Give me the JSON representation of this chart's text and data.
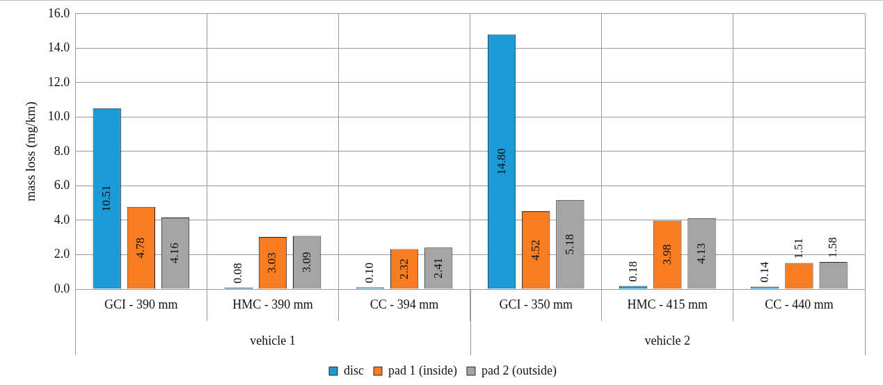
{
  "chart_data": {
    "type": "bar",
    "ylabel": "mass loss (mg/km)",
    "categories": [
      "GCI - 390 mm",
      "HMC - 390 mm",
      "CC - 394 mm",
      "GCI - 350 mm",
      "HMC - 415 mm",
      "CC - 440 mm"
    ],
    "series": [
      {
        "name": "disc",
        "color": "#1a9ad6",
        "values": [
          10.51,
          0.08,
          0.1,
          14.8,
          0.18,
          0.14
        ],
        "value_labels": [
          "10.51",
          "0.08",
          "0.10",
          "14.80",
          "0.18",
          "0.14"
        ]
      },
      {
        "name": "pad 1 (inside)",
        "color": "#fb7d21",
        "values": [
          4.78,
          3.03,
          2.32,
          4.52,
          3.98,
          1.51
        ],
        "value_labels": [
          "4.78",
          "3.03",
          "2.32",
          "4.52",
          "3.98",
          "1.51"
        ]
      },
      {
        "name": "pad 2 (outside)",
        "color": "#a5a5a5",
        "values": [
          4.16,
          3.09,
          2.41,
          5.18,
          4.13,
          1.58
        ],
        "value_labels": [
          "4.16",
          "3.09",
          "2.41",
          "5.18",
          "4.13",
          "1.58"
        ]
      }
    ],
    "ylim": [
      0,
      16
    ],
    "yticks": [
      {
        "value": 0,
        "label": "0.0"
      },
      {
        "value": 2,
        "label": "2.0"
      },
      {
        "value": 4,
        "label": "4.0"
      },
      {
        "value": 6,
        "label": "6.0"
      },
      {
        "value": 8,
        "label": "8.0"
      },
      {
        "value": 10,
        "label": "10.0"
      },
      {
        "value": 12,
        "label": "12.0"
      },
      {
        "value": 14,
        "label": "14.0"
      },
      {
        "value": 16,
        "label": "16.0"
      }
    ],
    "annotations": [
      "vehicle 1",
      "vehicle 2"
    ],
    "grid": true,
    "legend": "bottom"
  }
}
